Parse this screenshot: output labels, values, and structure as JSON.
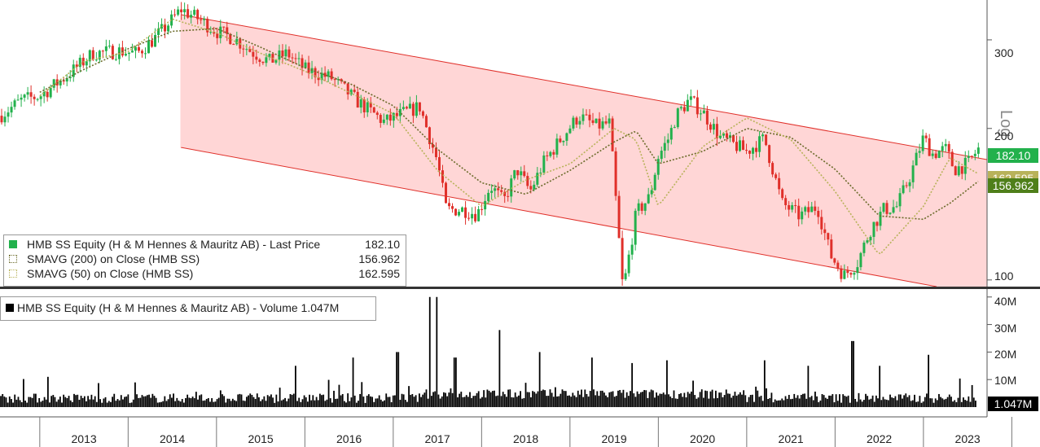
{
  "chart_data": [
    {
      "type": "candlestick",
      "panel": "price",
      "scale": "log",
      "scale_label": "Log",
      "ylim": [
        97,
        360
      ],
      "y_ticks": [
        "300",
        "200",
        "100"
      ],
      "x_tick_labels": [
        "2013",
        "2014",
        "2015",
        "2016",
        "2017",
        "2018",
        "2019",
        "2020",
        "2021",
        "2022",
        "2023"
      ],
      "series": [
        {
          "name": "HMB SS Equity (H & M Hennes & Mauritz AB) - Last Price",
          "value_label": "182.10",
          "color": "#22b14c"
        },
        {
          "name": "SMAVG (200)  on Close (HMB SS)",
          "value_label": "156.962",
          "color": "#6b6b2a"
        },
        {
          "name": "SMAVG (50)  on Close (HMB SS)",
          "value_label": "162.595",
          "color": "#b8b25a"
        }
      ],
      "close_approx": {
        "x": [
          2012.55,
          2012.8,
          2013.0,
          2013.3,
          2013.6,
          2013.9,
          2014.1,
          2014.3,
          2014.45,
          2014.6,
          2014.8,
          2015.0,
          2015.2,
          2015.4,
          2015.6,
          2015.8,
          2016.0,
          2016.3,
          2016.6,
          2016.9,
          2017.1,
          2017.3,
          2017.5,
          2017.6,
          2017.8,
          2017.95,
          2018.1,
          2018.25,
          2018.4,
          2018.55,
          2018.7,
          2018.9,
          2019.1,
          2019.3,
          2019.45,
          2019.6,
          2019.75,
          2019.9,
          2020.0,
          2020.12,
          2020.2,
          2020.35,
          2020.5,
          2020.7,
          2020.85,
          2021.0,
          2021.2,
          2021.4,
          2021.6,
          2021.8,
          2021.95,
          2022.1,
          2022.25,
          2022.4,
          2022.55,
          2022.7,
          2022.85,
          2023.0,
          2023.1,
          2023.25,
          2023.35,
          2023.5,
          2023.62
        ],
        "y": [
          212,
          228,
          232,
          254,
          282,
          285,
          282,
          302,
          322,
          345,
          330,
          312,
          302,
          284,
          272,
          282,
          262,
          252,
          226,
          206,
          214,
          221,
          172,
          138,
          138,
          135,
          154,
          143,
          166,
          150,
          171,
          191,
          212,
          202,
          205,
          95,
          136,
          146,
          176,
          192,
          212,
          228,
          216,
          192,
          186,
          180,
          191,
          142,
          134,
          140,
          112,
          102,
          108,
          126,
          138,
          140,
          161,
          192,
          178,
          182,
          166,
          170,
          182.1
        ]
      },
      "sma200_approx": {
        "x": [
          2013.0,
          2013.5,
          2014.0,
          2014.5,
          2015.0,
          2015.5,
          2016.0,
          2016.5,
          2017.0,
          2017.5,
          2018.0,
          2018.5,
          2019.0,
          2019.5,
          2019.75,
          2020.0,
          2020.5,
          2021.0,
          2021.5,
          2022.0,
          2022.5,
          2023.0,
          2023.3,
          2023.62
        ],
        "y": [
          236,
          262,
          288,
          312,
          316,
          290,
          264,
          246,
          222,
          182,
          156,
          148,
          165,
          188,
          198,
          170,
          180,
          200,
          192,
          166,
          134,
          132,
          142,
          156.962
        ]
      },
      "sma50_approx": {
        "x": [
          2013.0,
          2013.5,
          2014.0,
          2014.5,
          2015.0,
          2015.5,
          2016.0,
          2016.5,
          2017.0,
          2017.5,
          2018.0,
          2018.5,
          2019.0,
          2019.5,
          2019.75,
          2020.0,
          2020.5,
          2021.0,
          2021.5,
          2022.0,
          2022.5,
          2023.0,
          2023.3,
          2023.62
        ],
        "y": [
          232,
          272,
          284,
          330,
          310,
          282,
          260,
          236,
          214,
          165,
          140,
          158,
          170,
          200,
          190,
          140,
          184,
          210,
          190,
          150,
          112,
          140,
          175,
          162.595
        ]
      }
    },
    {
      "type": "bar",
      "panel": "volume",
      "ylim": [
        0,
        42
      ],
      "y_ticks": [
        "40M",
        "30M",
        "20M",
        "10M"
      ],
      "series": [
        {
          "name": "HMB SS Equity (H & M Hennes & Mauritz AB) - Volume",
          "value_label": "1.047M",
          "color": "#000000"
        }
      ],
      "spikes_approx": {
        "x": [
          2013.1,
          2015.9,
          2016.55,
          2017.05,
          2017.42,
          2017.5,
          2017.7,
          2018.2,
          2018.65,
          2019.25,
          2019.7,
          2020.1,
          2021.2,
          2021.7,
          2022.2,
          2022.5,
          2023.05,
          2023.55
        ],
        "y": [
          11,
          15,
          18,
          20,
          40,
          40,
          18,
          28,
          20,
          18,
          16,
          17,
          17,
          15,
          24,
          15,
          19,
          8
        ]
      }
    }
  ],
  "legend_price": {
    "last_price_label": "HMB SS Equity (H & M Hennes & Mauritz AB) - Last Price",
    "last_price_value": "182.10",
    "sma200_label": "SMAVG (200)  on Close (HMB SS)",
    "sma200_value": "156.962",
    "sma50_label": "SMAVG (50)  on Close (HMB SS)",
    "sma50_value": "162.595"
  },
  "legend_volume": {
    "label": "HMB SS Equity (H & M Hennes & Mauritz AB) - Volume 1.047M"
  },
  "tags": {
    "last_price": "182.10",
    "sma200": "156.962",
    "sma50_partial": "162.595",
    "volume": "1.047M"
  },
  "colors": {
    "up": "#22b14c",
    "down": "#e0302a",
    "channel_fill": "#ffd6d6",
    "channel_line": "#e0302a",
    "sma200": "#6b6b2a",
    "sma50": "#b8b25a",
    "last_price_tag": "#22b14c",
    "sma200_tag": "#4f7f1a",
    "volume": "#000000"
  }
}
